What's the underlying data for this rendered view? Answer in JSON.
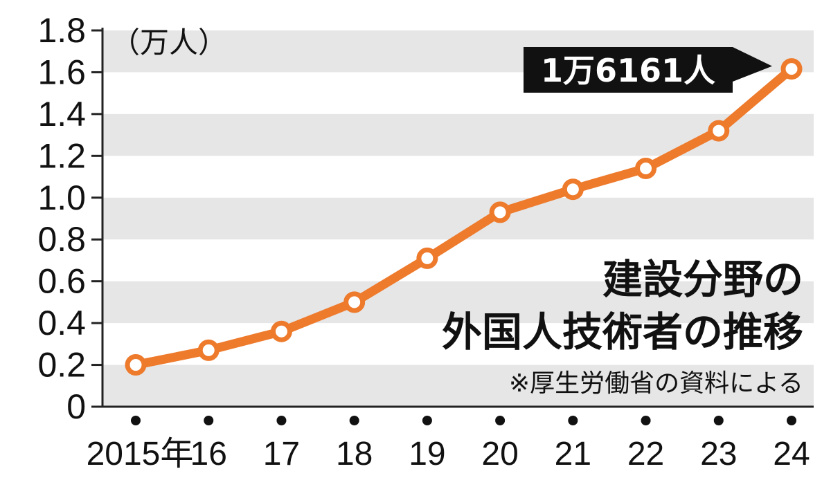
{
  "chart_data": {
    "type": "line",
    "title_lines": [
      "建設分野の",
      "外国人技術者の推移"
    ],
    "source": "※厚生労働省の資料による",
    "unit_label": "（万人）",
    "x": [
      "2015年",
      "16",
      "17",
      "18",
      "19",
      "20",
      "21",
      "22",
      "23",
      "24"
    ],
    "values": [
      0.2,
      0.27,
      0.36,
      0.5,
      0.71,
      0.93,
      1.04,
      1.14,
      1.32,
      1.6161
    ],
    "y_ticks": [
      "0",
      "0.2",
      "0.4",
      "0.6",
      "0.8",
      "1.0",
      "1.2",
      "1.4",
      "1.6",
      "1.8"
    ],
    "ylim": [
      0,
      1.8
    ],
    "annotation": "1万6161人",
    "grid": "alternating horizontal bands",
    "colors": {
      "line": "#ee7a2c",
      "band": "#e6e6e6",
      "axis": "#222222",
      "callout_bg": "#111111"
    }
  }
}
